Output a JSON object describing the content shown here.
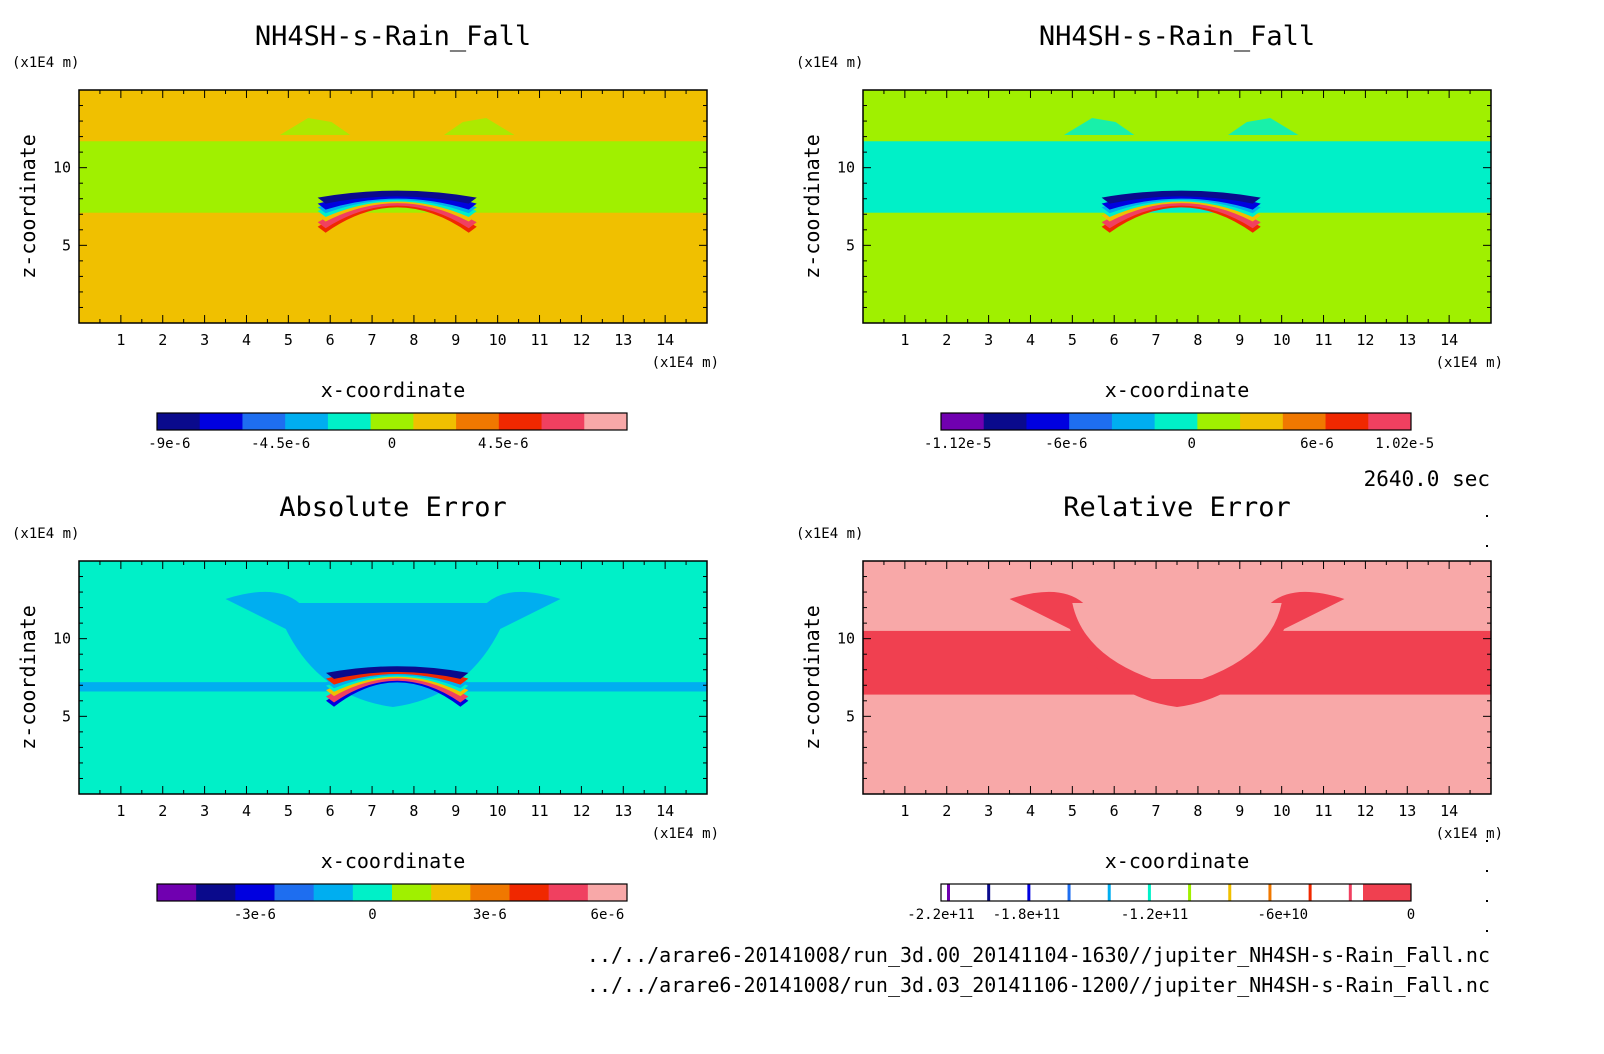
{
  "time_label": "2640.0 sec",
  "footer_lines": [
    "../../arare6-20141008/run_3d.00_20141104-1630//jupiter_NH4SH-s-Rain_Fall.nc",
    "../../arare6-20141008/run_3d.03_20141106-1200//jupiter_NH4SH-s-Rain_Fall.nc"
  ],
  "chart_data": [
    {
      "type": "heatmap",
      "title": "NH4SH-s-Rain_Fall",
      "xlabel": "x-coordinate",
      "ylabel": "z-coordinate",
      "x_unit": "(x1E4 m)",
      "y_unit": "(x1E4 m)",
      "xlim": [
        0,
        15
      ],
      "ylim": [
        0,
        15
      ],
      "xticks": [
        1,
        2,
        3,
        4,
        5,
        6,
        7,
        8,
        9,
        10,
        11,
        12,
        13,
        14
      ],
      "yticks": [
        5,
        10
      ],
      "colorbar": {
        "colors": [
          "#0a0a8c",
          "#0000e0",
          "#1e6ef0",
          "#00aef0",
          "#00f0c8",
          "#a0f000",
          "#f0c000",
          "#f07800",
          "#f02800",
          "#f04060",
          "#f8a8a8"
        ],
        "tick_labels": [
          "-9e-6",
          "-4.5e-6",
          "0",
          "4.5e-6"
        ],
        "tick_values": [
          -9e-06,
          -4.5e-06,
          0,
          4.5e-06
        ],
        "range": [
          -9.5e-06,
          9.5e-06
        ]
      },
      "background": "#f0c000",
      "features": [
        {
          "kind": "band",
          "z": [
            7.1,
            11.7
          ],
          "color": "#a0f000"
        },
        {
          "kind": "cap",
          "x": [
            4.8,
            10.4
          ],
          "z": [
            12.1,
            13.2
          ],
          "color": "#a0f000"
        },
        {
          "kind": "dome",
          "x": [
            5.7,
            9.5
          ],
          "z": [
            6.2,
            8.6
          ],
          "top_color": "#0000e0",
          "bottom_color": "#f02800"
        }
      ]
    },
    {
      "type": "heatmap",
      "title": "NH4SH-s-Rain_Fall",
      "xlabel": "x-coordinate",
      "ylabel": "z-coordinate",
      "x_unit": "(x1E4 m)",
      "y_unit": "(x1E4 m)",
      "xlim": [
        0,
        15
      ],
      "ylim": [
        0,
        15
      ],
      "xticks": [
        1,
        2,
        3,
        4,
        5,
        6,
        7,
        8,
        9,
        10,
        11,
        12,
        13,
        14
      ],
      "yticks": [
        5,
        10
      ],
      "colorbar": {
        "colors": [
          "#7000b0",
          "#0a0a8c",
          "#0000e0",
          "#1e6ef0",
          "#00aef0",
          "#00f0c8",
          "#a0f000",
          "#f0c000",
          "#f07800",
          "#f02800",
          "#f04060"
        ],
        "tick_labels": [
          "-1.12e-5",
          "-6e-6",
          "0",
          "6e-6",
          "1.02e-5"
        ],
        "tick_values": [
          -1.12e-05,
          -6e-06,
          0,
          6e-06,
          1.02e-05
        ],
        "range": [
          -1.2e-05,
          1.05e-05
        ]
      },
      "background": "#a0f000",
      "features": [
        {
          "kind": "band",
          "z": [
            7.1,
            11.7
          ],
          "color": "#00f0c8"
        },
        {
          "kind": "cap",
          "x": [
            4.8,
            10.4
          ],
          "z": [
            12.1,
            13.2
          ],
          "color": "#00f0c8"
        },
        {
          "kind": "dome",
          "x": [
            5.7,
            9.5
          ],
          "z": [
            6.2,
            8.6
          ],
          "top_color": "#0000e0",
          "bottom_color": "#f02800"
        }
      ]
    },
    {
      "type": "heatmap",
      "title": "Absolute Error",
      "xlabel": "x-coordinate",
      "ylabel": "z-coordinate",
      "x_unit": "(x1E4 m)",
      "y_unit": "(x1E4 m)",
      "xlim": [
        0,
        15
      ],
      "ylim": [
        0,
        15
      ],
      "xticks": [
        1,
        2,
        3,
        4,
        5,
        6,
        7,
        8,
        9,
        10,
        11,
        12,
        13,
        14
      ],
      "yticks": [
        5,
        10
      ],
      "colorbar": {
        "colors": [
          "#7000b0",
          "#0a0a8c",
          "#0000e0",
          "#1e6ef0",
          "#00aef0",
          "#00f0c8",
          "#a0f000",
          "#f0c000",
          "#f07800",
          "#f02800",
          "#f04060",
          "#f8a8a8"
        ],
        "tick_labels": [
          "-3e-6",
          "0",
          "3e-6",
          "6e-6"
        ],
        "tick_values": [
          -3e-06,
          0,
          3e-06,
          6e-06
        ],
        "range": [
          -5.5e-06,
          6.5e-06
        ]
      },
      "background": "#00f0c8",
      "features": [
        {
          "kind": "cloud",
          "x": [
            3.5,
            11.5
          ],
          "z": [
            5.6,
            13.2
          ],
          "color": "#00aef0"
        },
        {
          "kind": "band",
          "z": [
            6.6,
            7.2
          ],
          "color": "#00aef0"
        },
        {
          "kind": "dome",
          "x": [
            5.9,
            9.3
          ],
          "z": [
            6.0,
            8.3
          ],
          "top_color": "#f02800",
          "bottom_color": "#0000e0"
        }
      ]
    },
    {
      "type": "heatmap",
      "title": "Relative Error",
      "xlabel": "x-coordinate",
      "ylabel": "z-coordinate",
      "x_unit": "(x1E4 m)",
      "y_unit": "(x1E4 m)",
      "xlim": [
        0,
        15
      ],
      "ylim": [
        0,
        15
      ],
      "xticks": [
        1,
        2,
        3,
        4,
        5,
        6,
        7,
        8,
        9,
        10,
        11,
        12,
        13,
        14
      ],
      "yticks": [
        5,
        10
      ],
      "colorbar": {
        "style": "lines",
        "colors": [
          "#7000b0",
          "#0a0a8c",
          "#0000e0",
          "#1e6ef0",
          "#00aef0",
          "#00f0c8",
          "#a0f000",
          "#f0c000",
          "#f07800",
          "#f02800",
          "#f04060"
        ],
        "tick_labels": [
          "-2.2e+11",
          "-1.8e+11",
          "-1.2e+11",
          "-6e+10",
          "0"
        ],
        "tick_values": [
          -220000000000.0,
          -180000000000.0,
          -120000000000.0,
          -60000000000.0,
          0
        ],
        "range": [
          -220000000000.0,
          0
        ]
      },
      "background": "#f8a8a8",
      "features": [
        {
          "kind": "band",
          "z": [
            6.4,
            10.5
          ],
          "color": "#f04050"
        },
        {
          "kind": "cloud",
          "x": [
            3.5,
            11.5
          ],
          "z": [
            5.6,
            13.2
          ],
          "color": "#f04050"
        },
        {
          "kind": "hole",
          "x": [
            5.0,
            10.0
          ],
          "z": [
            7.4,
            12.3
          ],
          "color": "#f8a8a8"
        }
      ]
    }
  ]
}
